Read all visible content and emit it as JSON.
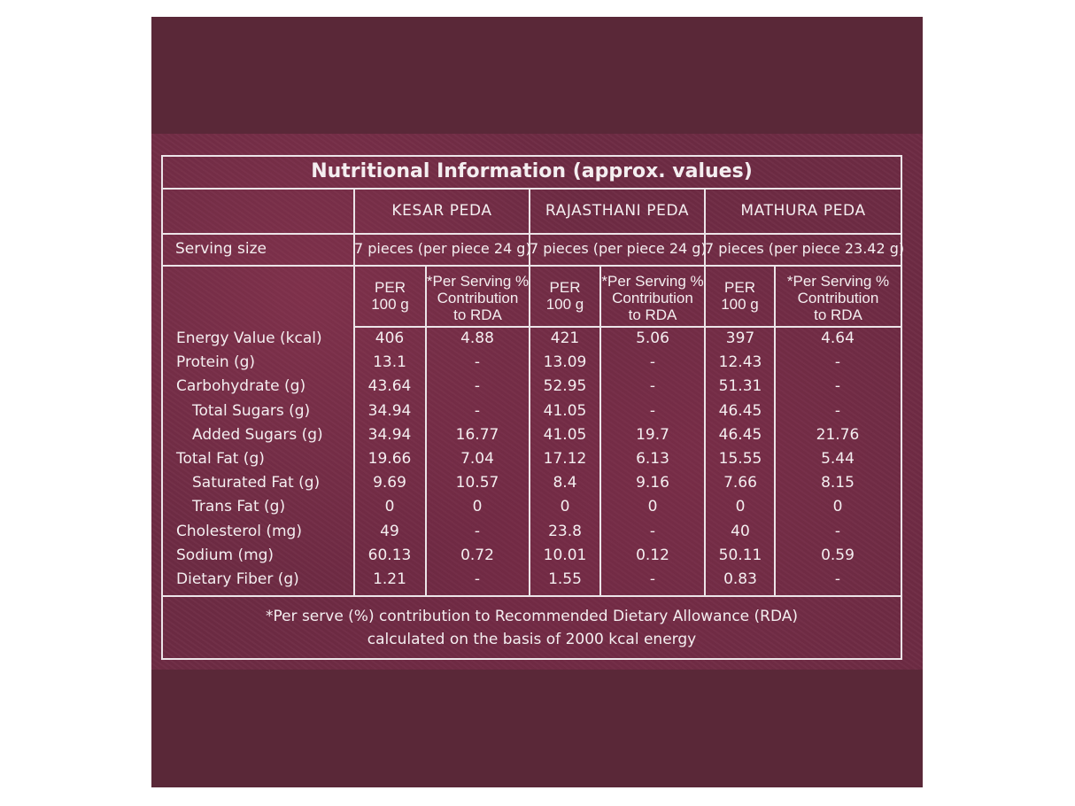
{
  "title": "Nutritional Information (approx. values)",
  "columns": [
    "KESAR PEDA",
    "RAJASTHANI PEDA",
    "MATHURA PEDA"
  ],
  "serving": {
    "label": "Serving size",
    "values": [
      "7 pieces (per piece 24 g)",
      "7 pieces (per piece 24 g)",
      "7 pieces (per piece 23.42 g)"
    ]
  },
  "subheaders": {
    "per100": [
      "PER",
      "100 g"
    ],
    "rda": [
      "*Per Serving %",
      "Contribution",
      "to RDA"
    ]
  },
  "rows": [
    {
      "label": "Energy Value (kcal)",
      "indent": false,
      "values": [
        "406",
        "4.88",
        "421",
        "5.06",
        "397",
        "4.64"
      ]
    },
    {
      "label": "Protein (g)",
      "indent": false,
      "values": [
        "13.1",
        "-",
        "13.09",
        "-",
        "12.43",
        "-"
      ]
    },
    {
      "label": "Carbohydrate (g)",
      "indent": false,
      "values": [
        "43.64",
        "-",
        "52.95",
        "-",
        "51.31",
        "-"
      ]
    },
    {
      "label": "Total Sugars (g)",
      "indent": true,
      "values": [
        "34.94",
        "-",
        "41.05",
        "-",
        "46.45",
        "-"
      ]
    },
    {
      "label": "Added Sugars (g)",
      "indent": true,
      "values": [
        "34.94",
        "16.77",
        "41.05",
        "19.7",
        "46.45",
        "21.76"
      ]
    },
    {
      "label": "Total Fat (g)",
      "indent": false,
      "values": [
        "19.66",
        "7.04",
        "17.12",
        "6.13",
        "15.55",
        "5.44"
      ]
    },
    {
      "label": "Saturated Fat (g)",
      "indent": true,
      "values": [
        "9.69",
        "10.57",
        "8.4",
        "9.16",
        "7.66",
        "8.15"
      ]
    },
    {
      "label": "Trans Fat (g)",
      "indent": true,
      "values": [
        "0",
        "0",
        "0",
        "0",
        "0",
        "0"
      ]
    },
    {
      "label": "Cholesterol (mg)",
      "indent": false,
      "values": [
        "49",
        "-",
        "23.8",
        "-",
        "40",
        "-"
      ]
    },
    {
      "label": "Sodium (mg)",
      "indent": false,
      "values": [
        "60.13",
        "0.72",
        "10.01",
        "0.12",
        "50.11",
        "0.59"
      ]
    },
    {
      "label": "Dietary Fiber (g)",
      "indent": false,
      "values": [
        "1.21",
        "-",
        "1.55",
        "-",
        "0.83",
        "-"
      ]
    }
  ],
  "footnote": [
    "*Per serve (%) contribution to Recommended Dietary Allowance (RDA)",
    "calculated on the basis of 2000 kcal energy"
  ],
  "colors": {
    "panel": "#5a2838",
    "texture": "#6e2b44",
    "lines": "#ece4e8",
    "text": "#f4eef0"
  }
}
